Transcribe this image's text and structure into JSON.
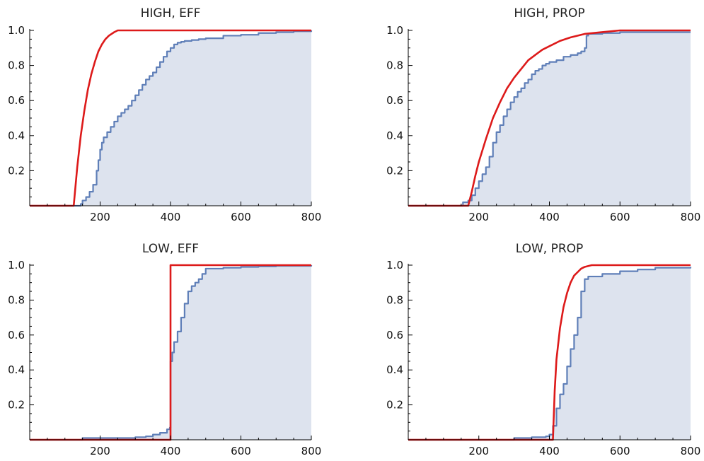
{
  "colors": {
    "theory": "#dd1a1a",
    "ecdf_line": "#5f7fb8",
    "ecdf_fill": "#dde3ee"
  },
  "chart_data": [
    {
      "type": "line",
      "title": "HIGH, EFF",
      "xlim": [
        0,
        800
      ],
      "ylim": [
        0,
        1
      ],
      "xticks": [
        200,
        400,
        600,
        800
      ],
      "yticks": [
        0.2,
        0.4,
        0.6,
        0.8,
        1.0
      ],
      "ytick_labels": [
        "0.2",
        "0.4",
        "0.6",
        "0.8",
        "1.0"
      ],
      "series": [
        {
          "kind": "empirical-step-filled",
          "x": [
            0,
            140,
            145,
            150,
            160,
            170,
            180,
            190,
            195,
            200,
            205,
            210,
            220,
            230,
            240,
            250,
            260,
            270,
            280,
            290,
            300,
            310,
            320,
            330,
            340,
            350,
            360,
            370,
            380,
            390,
            400,
            410,
            420,
            430,
            440,
            460,
            480,
            500,
            550,
            600,
            650,
            700,
            750,
            800
          ],
          "y": [
            0,
            0,
            0.01,
            0.03,
            0.05,
            0.08,
            0.12,
            0.2,
            0.26,
            0.32,
            0.36,
            0.39,
            0.42,
            0.45,
            0.48,
            0.51,
            0.53,
            0.55,
            0.57,
            0.6,
            0.63,
            0.66,
            0.69,
            0.72,
            0.74,
            0.76,
            0.79,
            0.82,
            0.85,
            0.88,
            0.9,
            0.92,
            0.93,
            0.935,
            0.94,
            0.945,
            0.95,
            0.955,
            0.97,
            0.975,
            0.985,
            0.99,
            0.995,
            1.0
          ]
        },
        {
          "kind": "theoretical",
          "x": [
            0,
            125,
            135,
            145,
            155,
            165,
            175,
            185,
            195,
            205,
            215,
            225,
            240,
            250,
            300,
            400,
            500,
            600,
            700,
            800
          ],
          "y": [
            0,
            0,
            0.22,
            0.4,
            0.54,
            0.66,
            0.75,
            0.82,
            0.88,
            0.92,
            0.95,
            0.97,
            0.99,
            1.0,
            1.0,
            1.0,
            1.0,
            1.0,
            1.0,
            1.0
          ]
        }
      ]
    },
    {
      "type": "line",
      "title": "HIGH, PROP",
      "xlim": [
        0,
        800
      ],
      "ylim": [
        0,
        1
      ],
      "xticks": [
        200,
        400,
        600,
        800
      ],
      "yticks": [
        0.2,
        0.4,
        0.6,
        0.8,
        1.0
      ],
      "ytick_labels": [
        "0.2",
        "0.4",
        "0.6",
        "0.8",
        "1.0"
      ],
      "series": [
        {
          "kind": "empirical-step-filled",
          "x": [
            0,
            150,
            155,
            170,
            180,
            190,
            200,
            210,
            220,
            230,
            240,
            250,
            260,
            270,
            280,
            290,
            300,
            310,
            320,
            330,
            340,
            350,
            360,
            370,
            380,
            390,
            400,
            420,
            440,
            460,
            480,
            490,
            500,
            505,
            510,
            550,
            600
          ],
          "y": [
            0,
            0,
            0.02,
            0.03,
            0.06,
            0.1,
            0.14,
            0.18,
            0.22,
            0.28,
            0.36,
            0.42,
            0.46,
            0.51,
            0.55,
            0.59,
            0.62,
            0.65,
            0.67,
            0.7,
            0.72,
            0.75,
            0.77,
            0.78,
            0.8,
            0.81,
            0.82,
            0.83,
            0.85,
            0.86,
            0.87,
            0.88,
            0.9,
            0.97,
            0.98,
            0.985,
            0.99
          ]
        },
        {
          "kind": "theoretical",
          "x": [
            0,
            170,
            180,
            190,
            200,
            220,
            240,
            260,
            280,
            300,
            320,
            340,
            360,
            380,
            400,
            430,
            460,
            500,
            550,
            600,
            700,
            800
          ],
          "y": [
            0,
            0,
            0.08,
            0.17,
            0.25,
            0.38,
            0.5,
            0.59,
            0.67,
            0.73,
            0.78,
            0.83,
            0.86,
            0.89,
            0.91,
            0.94,
            0.96,
            0.98,
            0.99,
            1.0,
            1.0,
            1.0
          ]
        }
      ]
    },
    {
      "type": "line",
      "title": "LOW, EFF",
      "xlim": [
        0,
        800
      ],
      "ylim": [
        0,
        1
      ],
      "xticks": [
        200,
        400,
        600,
        800
      ],
      "yticks": [
        0.2,
        0.4,
        0.6,
        0.8,
        1.0
      ],
      "ytick_labels": [
        "0.2",
        "0.4",
        "0.6",
        "0.8",
        "1.0"
      ],
      "series": [
        {
          "kind": "empirical-step-filled",
          "x": [
            0,
            150,
            250,
            300,
            330,
            350,
            370,
            390,
            398,
            400,
            405,
            410,
            420,
            430,
            440,
            450,
            460,
            470,
            480,
            490,
            500,
            550,
            600,
            650,
            700,
            800
          ],
          "y": [
            0,
            0.01,
            0.01,
            0.015,
            0.02,
            0.03,
            0.04,
            0.06,
            0.07,
            0.45,
            0.5,
            0.56,
            0.62,
            0.7,
            0.78,
            0.85,
            0.88,
            0.9,
            0.92,
            0.95,
            0.98,
            0.985,
            0.99,
            0.993,
            0.996,
            1.0
          ]
        },
        {
          "kind": "theoretical",
          "x": [
            0,
            400,
            400,
            800
          ],
          "y": [
            0,
            0,
            1.0,
            1.0
          ]
        }
      ]
    },
    {
      "type": "line",
      "title": "LOW, PROP",
      "xlim": [
        0,
        800
      ],
      "ylim": [
        0,
        1
      ],
      "xticks": [
        200,
        400,
        600,
        800
      ],
      "yticks": [
        0.2,
        0.4,
        0.6,
        0.8,
        1.0
      ],
      "ytick_labels": [
        "0.2",
        "0.4",
        "0.6",
        "0.8",
        "1.0"
      ],
      "series": [
        {
          "kind": "empirical-step-filled",
          "x": [
            0,
            300,
            350,
            390,
            400,
            410,
            420,
            430,
            440,
            450,
            460,
            470,
            480,
            490,
            500,
            510,
            550,
            600,
            650,
            700,
            800
          ],
          "y": [
            0,
            0.01,
            0.015,
            0.02,
            0.03,
            0.08,
            0.18,
            0.26,
            0.32,
            0.42,
            0.52,
            0.6,
            0.7,
            0.85,
            0.92,
            0.935,
            0.95,
            0.965,
            0.975,
            0.985,
            0.99
          ]
        },
        {
          "kind": "theoretical",
          "x": [
            0,
            410,
            415,
            420,
            430,
            440,
            450,
            460,
            470,
            480,
            490,
            500,
            520,
            550,
            600,
            800
          ],
          "y": [
            0,
            0,
            0.28,
            0.46,
            0.64,
            0.76,
            0.84,
            0.9,
            0.94,
            0.96,
            0.98,
            0.99,
            1.0,
            1.0,
            1.0,
            1.0
          ]
        }
      ]
    }
  ]
}
